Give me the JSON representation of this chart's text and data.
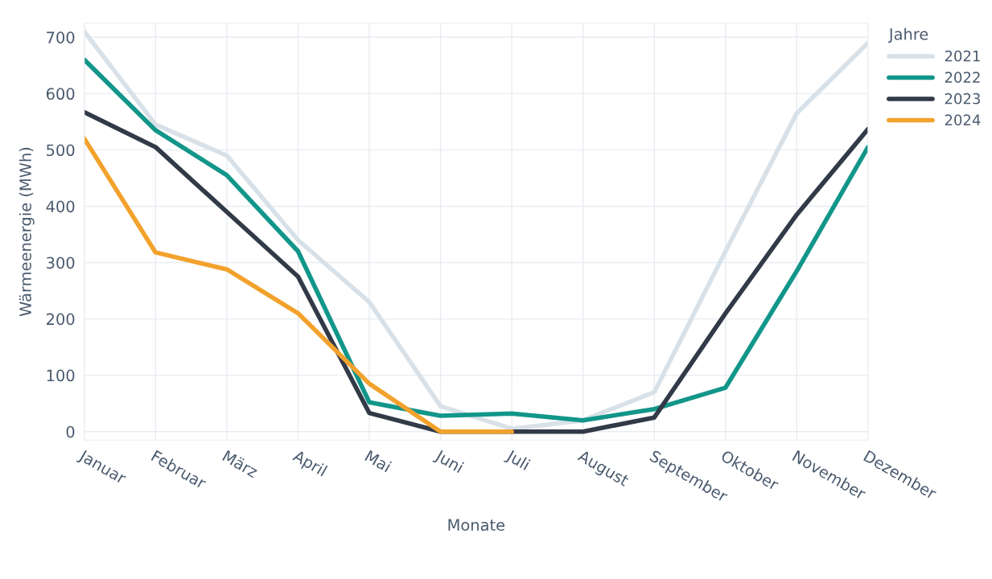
{
  "chart_data": {
    "type": "line",
    "xlabel": "Monate",
    "ylabel": "Wärmeenergie (MWh)",
    "legend_title": "Jahre",
    "legend": "top right",
    "grid": true,
    "categories": [
      "Januar",
      "Februar",
      "März",
      "April",
      "Mai",
      "Juni",
      "Juli",
      "August",
      "September",
      "Oktober",
      "November",
      "Dezember"
    ],
    "ylim": [
      -15,
      725
    ],
    "yticks": [
      0,
      100,
      200,
      300,
      400,
      500,
      600,
      700
    ],
    "series": [
      {
        "name": "2021",
        "color": "#d9e1e8",
        "values": [
          710,
          545,
          490,
          340,
          230,
          45,
          5,
          20,
          70,
          320,
          565,
          690
        ]
      },
      {
        "name": "2022",
        "color": "#12968a",
        "values": [
          660,
          535,
          455,
          320,
          52,
          28,
          32,
          20,
          40,
          78,
          285,
          505
        ]
      },
      {
        "name": "2023",
        "color": "#323a48",
        "values": [
          567,
          505,
          390,
          275,
          33,
          0,
          0,
          0,
          25,
          210,
          385,
          537
        ]
      },
      {
        "name": "2024",
        "color": "#f2a22c",
        "values": [
          520,
          318,
          288,
          210,
          85,
          0,
          0,
          null,
          null,
          null,
          null,
          null
        ]
      }
    ]
  }
}
